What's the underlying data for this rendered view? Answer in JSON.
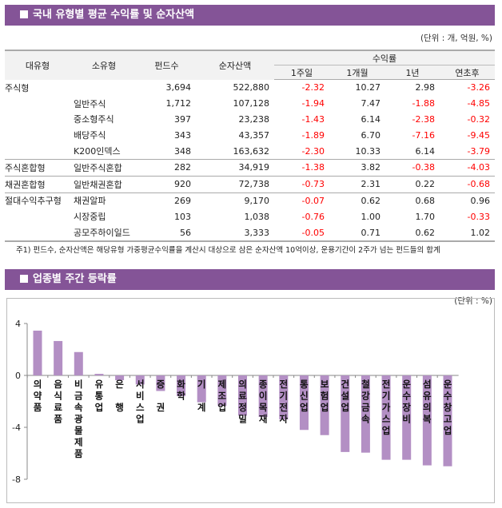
{
  "section1": {
    "title": "국내 유형별 평균 수익률 및 순자산액",
    "unit": "(단위 : 개, 억원, %)",
    "headers": {
      "major": "대유형",
      "minor": "소유형",
      "funds": "펀드수",
      "assets": "순자산액",
      "returns": "수익률",
      "w1": "1주일",
      "m1": "1개월",
      "y1": "1년",
      "ytd": "연초후"
    },
    "rows": [
      {
        "major": "주식형",
        "minor": "",
        "funds": "3,694",
        "assets": "522,880",
        "w1": "-2.32",
        "m1": "10.27",
        "y1": "2.98",
        "ytd": "-3.26"
      },
      {
        "major": "",
        "minor": "일반주식",
        "funds": "1,712",
        "assets": "107,128",
        "w1": "-1.94",
        "m1": "7.47",
        "y1": "-1.88",
        "ytd": "-4.85"
      },
      {
        "major": "",
        "minor": "중소형주식",
        "funds": "397",
        "assets": "23,238",
        "w1": "-1.43",
        "m1": "6.14",
        "y1": "-2.38",
        "ytd": "-0.32"
      },
      {
        "major": "",
        "minor": "배당주식",
        "funds": "343",
        "assets": "43,357",
        "w1": "-1.89",
        "m1": "6.70",
        "y1": "-7.16",
        "ytd": "-9.45"
      },
      {
        "major": "",
        "minor": "K200인덱스",
        "funds": "348",
        "assets": "163,632",
        "w1": "-2.30",
        "m1": "10.33",
        "y1": "6.14",
        "ytd": "-3.79"
      },
      {
        "major": "주식혼합형",
        "minor": "일반주식혼합",
        "funds": "282",
        "assets": "34,919",
        "w1": "-1.38",
        "m1": "3.82",
        "y1": "-0.38",
        "ytd": "-4.03"
      },
      {
        "major": "채권혼합형",
        "minor": "일반채권혼합",
        "funds": "920",
        "assets": "72,738",
        "w1": "-0.73",
        "m1": "2.31",
        "y1": "0.22",
        "ytd": "-0.68"
      },
      {
        "major": "절대수익추구형",
        "minor": "채권알파",
        "funds": "269",
        "assets": "9,170",
        "w1": "-0.07",
        "m1": "0.62",
        "y1": "0.68",
        "ytd": "0.96"
      },
      {
        "major": "",
        "minor": "시장중립",
        "funds": "103",
        "assets": "1,038",
        "w1": "-0.76",
        "m1": "1.00",
        "y1": "1.70",
        "ytd": "-0.33"
      },
      {
        "major": "",
        "minor": "공모주하이일드",
        "funds": "56",
        "assets": "3,333",
        "w1": "-0.05",
        "m1": "0.71",
        "y1": "0.62",
        "ytd": "1.02"
      }
    ],
    "note": "주1) 펀드수, 순자산액은 해당유형 가중평균수익률을 계산시 대상으로 삼은 순자산액 10억이상, 운용기간이 2주가 넘는 펀드들의 합계",
    "negative_color": "#ff0000"
  },
  "section2": {
    "title": "업종별 주간 등락률",
    "unit": "(단위 : %)"
  },
  "colors": {
    "header_bg": "#845497",
    "bar": "#b38fc4"
  },
  "chart_data": {
    "type": "bar",
    "categories": [
      "의약품",
      "음식료품",
      "비금속광물제품",
      "유통업",
      "은 행",
      "서비스업",
      "증 권",
      "화학",
      "기 계",
      "제조업",
      "의료정밀",
      "종이목재",
      "전기전자",
      "통신업",
      "보험업",
      "건설업",
      "철강금속",
      "전기가스업",
      "운수장비",
      "섬유의복",
      "운수창고업"
    ],
    "values": [
      3.45,
      2.65,
      1.8,
      0.12,
      -0.37,
      -0.7,
      -1.2,
      -1.6,
      -2.07,
      -2.35,
      -3.1,
      -3.2,
      -3.4,
      -4.2,
      -4.6,
      -5.9,
      -5.95,
      -6.5,
      -6.5,
      -6.93,
      -7.0
    ],
    "ylim": [
      -8,
      4
    ],
    "yticks": [
      "4",
      "0",
      "-4",
      "-8"
    ],
    "yticks_values": [
      4,
      0,
      -4,
      -8
    ],
    "grid": false,
    "legend": "none"
  }
}
